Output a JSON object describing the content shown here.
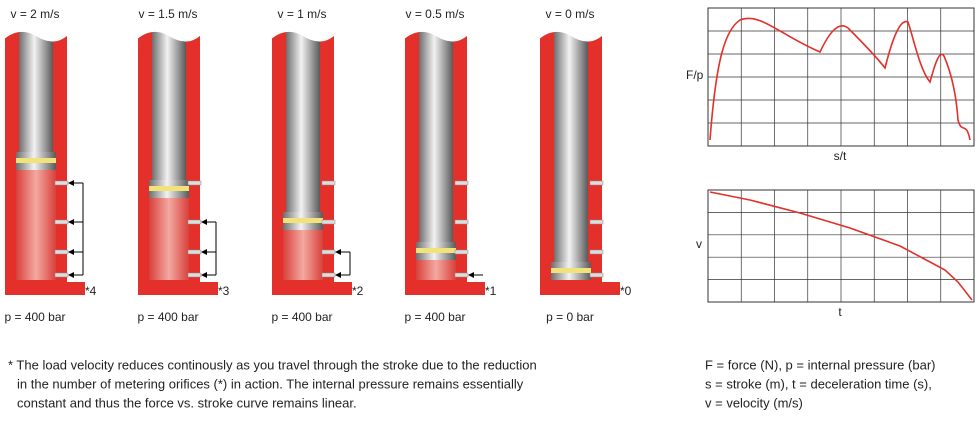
{
  "cylinders": [
    {
      "velocity": "v = 2 m/s",
      "pressure": "p = 400 bar",
      "orifices": "*4"
    },
    {
      "velocity": "v = 1.5 m/s",
      "pressure": "p = 400 bar",
      "orifices": "*3"
    },
    {
      "velocity": "v = 1 m/s",
      "pressure": "p = 400 bar",
      "orifices": "*2"
    },
    {
      "velocity": "v = 0.5 m/s",
      "pressure": "p = 400 bar",
      "orifices": "*1"
    },
    {
      "velocity": "v = 0 m/s",
      "pressure": "p = 0 bar",
      "orifices": "*0"
    }
  ],
  "graphs": {
    "force": {
      "y_label": "F/p",
      "x_label": "s/t"
    },
    "velocity": {
      "y_label": "v",
      "x_label": "t"
    }
  },
  "footnote": [
    "* The load velocity reduces continously as you travel through the stroke due to the reduction",
    "in the number of metering orifices (*) in action. The internal pressure remains essentially",
    "constant and thus the force vs. stroke curve remains linear."
  ],
  "legend": [
    "F = force (N), p = internal pressure (bar)",
    "s = stroke (m), t = deceleration time (s),",
    "v = velocity (m/s)"
  ]
}
